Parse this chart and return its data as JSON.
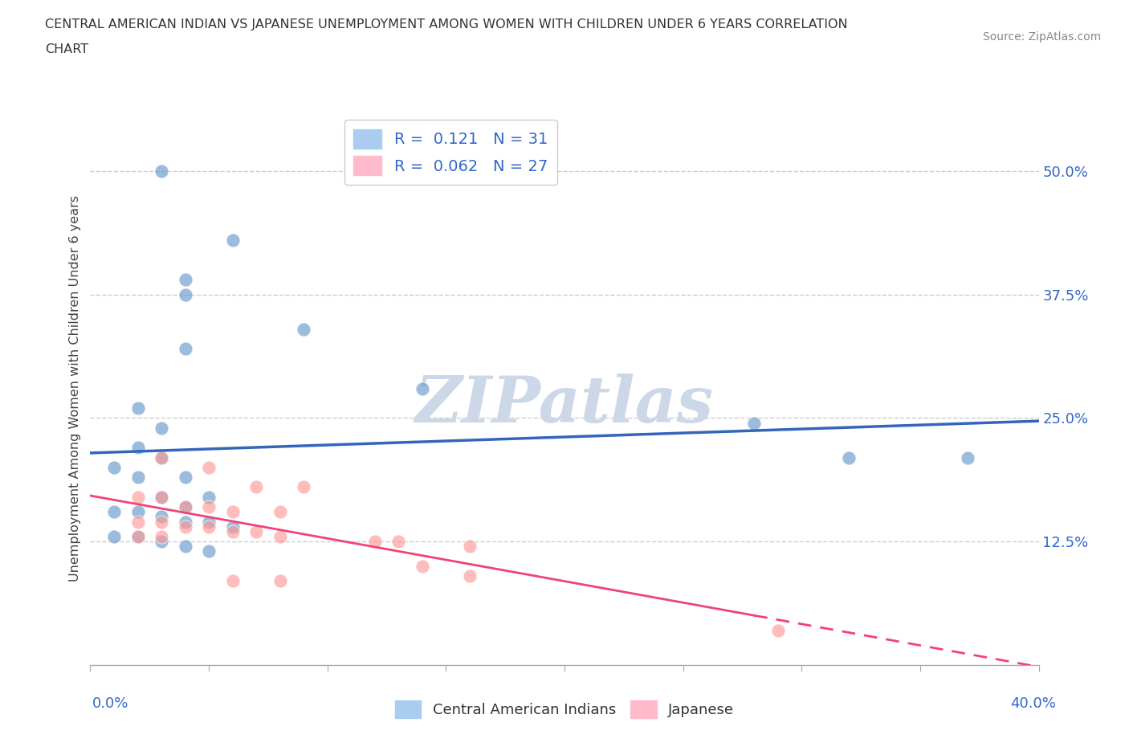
{
  "title_line1": "CENTRAL AMERICAN INDIAN VS JAPANESE UNEMPLOYMENT AMONG WOMEN WITH CHILDREN UNDER 6 YEARS CORRELATION",
  "title_line2": "CHART",
  "source_text": "Source: ZipAtlas.com",
  "ylabel": "Unemployment Among Women with Children Under 6 years",
  "xlim": [
    0.0,
    0.4
  ],
  "ylim": [
    0.0,
    0.56
  ],
  "ytick_values": [
    0.125,
    0.25,
    0.375,
    0.5
  ],
  "ytick_labels": [
    "12.5%",
    "25.0%",
    "37.5%",
    "50.0%"
  ],
  "grid_color": "#cccccc",
  "background_color": "#ffffff",
  "watermark_text": "ZIPatlas",
  "watermark_color": "#ccd8e8",
  "blue_color": "#6699cc",
  "pink_color": "#ff9999",
  "trendline_blue_color": "#3366bb",
  "trendline_pink_color": "#ee4477",
  "blue_scatter": [
    [
      0.03,
      0.5
    ],
    [
      0.06,
      0.43
    ],
    [
      0.04,
      0.39
    ],
    [
      0.04,
      0.375
    ],
    [
      0.09,
      0.34
    ],
    [
      0.04,
      0.32
    ],
    [
      0.14,
      0.28
    ],
    [
      0.02,
      0.26
    ],
    [
      0.03,
      0.24
    ],
    [
      0.02,
      0.22
    ],
    [
      0.03,
      0.21
    ],
    [
      0.01,
      0.2
    ],
    [
      0.02,
      0.19
    ],
    [
      0.04,
      0.19
    ],
    [
      0.03,
      0.17
    ],
    [
      0.05,
      0.17
    ],
    [
      0.04,
      0.16
    ],
    [
      0.01,
      0.155
    ],
    [
      0.02,
      0.155
    ],
    [
      0.03,
      0.15
    ],
    [
      0.04,
      0.145
    ],
    [
      0.05,
      0.145
    ],
    [
      0.06,
      0.14
    ],
    [
      0.01,
      0.13
    ],
    [
      0.02,
      0.13
    ],
    [
      0.03,
      0.125
    ],
    [
      0.04,
      0.12
    ],
    [
      0.05,
      0.115
    ],
    [
      0.28,
      0.245
    ],
    [
      0.32,
      0.21
    ],
    [
      0.37,
      0.21
    ]
  ],
  "pink_scatter": [
    [
      0.03,
      0.21
    ],
    [
      0.05,
      0.2
    ],
    [
      0.07,
      0.18
    ],
    [
      0.09,
      0.18
    ],
    [
      0.02,
      0.17
    ],
    [
      0.03,
      0.17
    ],
    [
      0.04,
      0.16
    ],
    [
      0.05,
      0.16
    ],
    [
      0.06,
      0.155
    ],
    [
      0.08,
      0.155
    ],
    [
      0.02,
      0.145
    ],
    [
      0.03,
      0.145
    ],
    [
      0.04,
      0.14
    ],
    [
      0.05,
      0.14
    ],
    [
      0.06,
      0.135
    ],
    [
      0.07,
      0.135
    ],
    [
      0.08,
      0.13
    ],
    [
      0.02,
      0.13
    ],
    [
      0.03,
      0.13
    ],
    [
      0.12,
      0.125
    ],
    [
      0.13,
      0.125
    ],
    [
      0.16,
      0.12
    ],
    [
      0.14,
      0.1
    ],
    [
      0.16,
      0.09
    ],
    [
      0.06,
      0.085
    ],
    [
      0.08,
      0.085
    ],
    [
      0.29,
      0.035
    ]
  ]
}
